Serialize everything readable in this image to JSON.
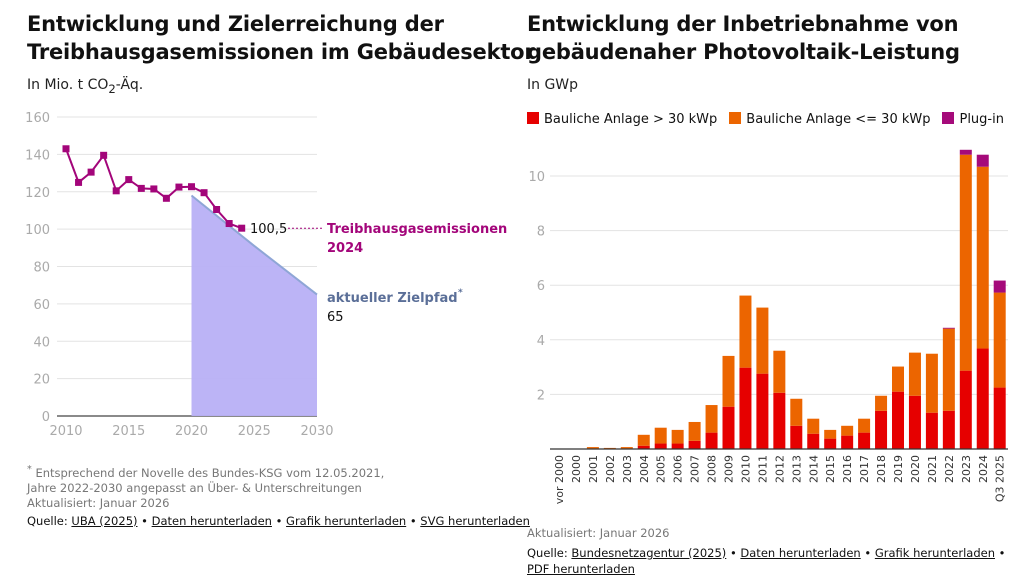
{
  "left": {
    "title_line1": "Entwicklung und Zielerreichung der",
    "title_line2": "Treibhausgasemissionen im Gebäudesektor",
    "unit_pre": "In Mio. t CO",
    "unit_sub": "2",
    "unit_post": "-Äq.",
    "footnote_star": "*",
    "footnote1": "Entsprechend der Novelle des Bundes-KSG vom 12.05.2021,",
    "footnote2": "Jahre 2022-2030 angepasst an Über- & Unterschreitungen",
    "updated": "Aktualisiert: Januar 2026",
    "source_label": "Quelle:",
    "source_link": "UBA (2025)",
    "sep": "•",
    "link_data": "Daten herunterladen",
    "link_graphic": "Grafik herunterladen",
    "link_svg": "SVG herunterladen"
  },
  "right": {
    "title_line1": "Entwicklung der Inbetriebnahme von",
    "title_line2": "gebäudenaher Photovoltaik-Leistung",
    "unit": "In GWp",
    "updated": "Aktualisiert: Januar 2026",
    "source_label": "Quelle:",
    "source_link": "Bundesnetzagentur (2025)",
    "sep": "•",
    "link_data": "Daten herunterladen",
    "link_graphic": "Grafik herunterladen",
    "link_pdf": "PDF herunterladen"
  },
  "chart_data": [
    {
      "type": "line",
      "xlim": [
        2010,
        2030
      ],
      "ylim": [
        0,
        160
      ],
      "x_ticks": [
        "2010",
        "2015",
        "2020",
        "2025",
        "2030"
      ],
      "y_ticks": [
        "0",
        "20",
        "40",
        "60",
        "80",
        "100",
        "120",
        "140",
        "160"
      ],
      "grid": true,
      "colors": {
        "emissions": "#a3057a",
        "target_fill": "#b8b0f5",
        "target_line": "#8fa6d6",
        "target_label": "#5b6f98"
      },
      "series": [
        {
          "name": "Treibhausgasemissionen 2024",
          "x": [
            2010,
            2011,
            2012,
            2013,
            2014,
            2015,
            2016,
            2017,
            2018,
            2019,
            2020,
            2021,
            2022,
            2023,
            2024
          ],
          "y": [
            143,
            125,
            130.5,
            139.5,
            120.5,
            126.5,
            121.8,
            121.5,
            116.5,
            122.5,
            122.7,
            119.5,
            110.5,
            103,
            100.5
          ]
        },
        {
          "name": "aktueller Zielpfad",
          "x": [
            2020,
            2025,
            2030
          ],
          "y": [
            118,
            91,
            65
          ]
        }
      ],
      "annotations": {
        "last_value": "100,5",
        "emissions_label1": "Treibhausgasemissionen",
        "emissions_label2": "2024",
        "target_label": "aktueller Zielpfad",
        "target_star": "*",
        "target_value": "65"
      }
    },
    {
      "type": "bar",
      "stacked": true,
      "ylim": [
        0,
        11
      ],
      "y_ticks": [
        "2",
        "4",
        "6",
        "8",
        "10"
      ],
      "grid": true,
      "legend_position": "top-left",
      "categories": [
        "vor 2000",
        "2000",
        "2001",
        "2002",
        "2003",
        "2004",
        "2005",
        "2006",
        "2007",
        "2008",
        "2009",
        "2010",
        "2011",
        "2012",
        "2013",
        "2014",
        "2015",
        "2016",
        "2017",
        "2018",
        "2019",
        "2020",
        "2021",
        "2022",
        "2023",
        "2024",
        "Q3 2025"
      ],
      "series": [
        {
          "name": "Bauliche Anlage > 30 kWp",
          "color": "#e60000",
          "values": [
            0,
            0,
            0.02,
            0.01,
            0.02,
            0.12,
            0.2,
            0.2,
            0.3,
            0.6,
            1.55,
            2.98,
            2.76,
            2.06,
            0.85,
            0.56,
            0.38,
            0.49,
            0.6,
            1.4,
            2.1,
            1.95,
            1.33,
            1.4,
            2.87,
            3.68,
            2.25
          ]
        },
        {
          "name": "Bauliche Anlage <= 30 kWp",
          "color": "#ec6500",
          "values": [
            0,
            0.01,
            0.05,
            0.03,
            0.05,
            0.4,
            0.58,
            0.5,
            0.69,
            1.01,
            1.86,
            2.64,
            2.42,
            1.54,
            0.99,
            0.55,
            0.32,
            0.36,
            0.51,
            0.55,
            0.92,
            1.58,
            2.16,
            3.01,
            7.91,
            6.66,
            3.48
          ]
        },
        {
          "name": "Plug-in",
          "color": "#a50a7a",
          "values": [
            0,
            0,
            0,
            0,
            0,
            0,
            0,
            0,
            0,
            0,
            0,
            0,
            0,
            0,
            0,
            0,
            0,
            0,
            0,
            0,
            0,
            0,
            0,
            0.03,
            0.18,
            0.44,
            0.44
          ]
        }
      ]
    }
  ]
}
